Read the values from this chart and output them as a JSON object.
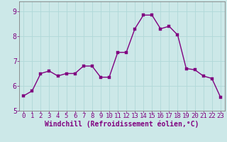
{
  "x": [
    0,
    1,
    2,
    3,
    4,
    5,
    6,
    7,
    8,
    9,
    10,
    11,
    12,
    13,
    14,
    15,
    16,
    17,
    18,
    19,
    20,
    21,
    22,
    23
  ],
  "y": [
    5.6,
    5.8,
    6.5,
    6.6,
    6.4,
    6.5,
    6.5,
    6.8,
    6.8,
    6.35,
    6.35,
    7.35,
    7.35,
    8.3,
    8.85,
    8.85,
    8.3,
    8.4,
    8.05,
    6.7,
    6.65,
    6.4,
    6.3,
    5.55
  ],
  "line_color": "#800080",
  "marker_color": "#800080",
  "bg_color": "#cce8e8",
  "grid_color": "#b0d8d8",
  "xlabel": "Windchill (Refroidissement éolien,°C)",
  "xlabel_color": "#800080",
  "xtick_color": "#800080",
  "ytick_color": "#800080",
  "spine_color": "#808080",
  "ylim": [
    5.0,
    9.4
  ],
  "xlim": [
    -0.5,
    23.5
  ],
  "yticks": [
    5,
    6,
    7,
    8,
    9
  ],
  "xticks": [
    0,
    1,
    2,
    3,
    4,
    5,
    6,
    7,
    8,
    9,
    10,
    11,
    12,
    13,
    14,
    15,
    16,
    17,
    18,
    19,
    20,
    21,
    22,
    23
  ],
  "marker_size": 2.5,
  "line_width": 1.0,
  "font_size": 6.5
}
